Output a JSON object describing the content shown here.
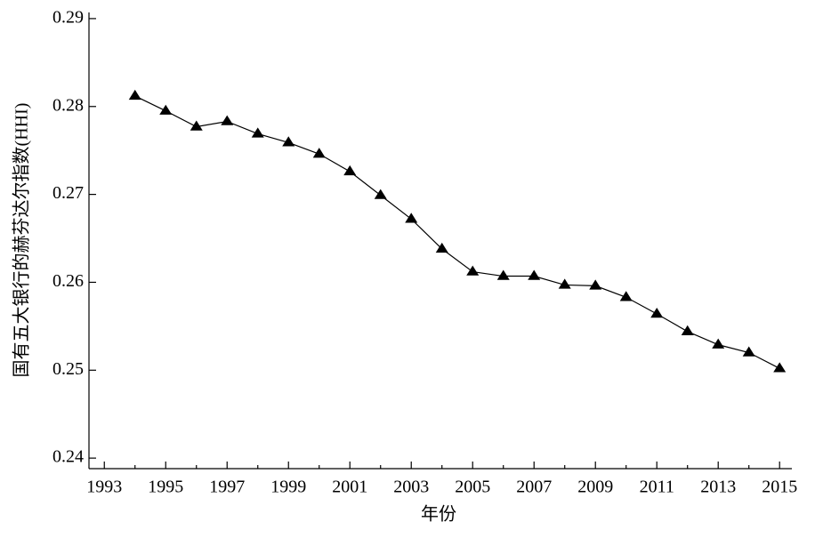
{
  "chart_data": {
    "type": "line",
    "y_label": "国有五大银行的赫芬达尔指数(HHI)",
    "x_label": "年份",
    "x": [
      1994,
      1995,
      1996,
      1997,
      1998,
      1999,
      2000,
      2001,
      2002,
      2003,
      2004,
      2005,
      2006,
      2007,
      2008,
      2009,
      2010,
      2011,
      2012,
      2013,
      2014,
      2015
    ],
    "series": [
      {
        "color": "#000000",
        "marker": "triangle",
        "values": [
          0.2812,
          0.2795,
          0.2777,
          0.2783,
          0.2769,
          0.2759,
          0.2746,
          0.2726,
          0.2699,
          0.2672,
          0.2638,
          0.2612,
          0.2607,
          0.2607,
          0.2597,
          0.2596,
          0.2583,
          0.2564,
          0.2544,
          0.2529,
          0.252,
          0.2502
        ]
      }
    ],
    "xlim": [
      1992.5,
      2015.4
    ],
    "xticks": [
      1993,
      1995,
      1997,
      1999,
      2001,
      2003,
      2005,
      2007,
      2009,
      2011,
      2013,
      2015
    ],
    "xminorticks": [
      1994,
      1996,
      1998,
      2000,
      2002,
      2004,
      2006,
      2008,
      2010,
      2012,
      2014
    ],
    "ylim": [
      0.2388,
      0.2907
    ],
    "yticks": [
      0.24,
      0.25,
      0.26,
      0.27,
      0.28,
      0.29
    ],
    "grid": false
  }
}
